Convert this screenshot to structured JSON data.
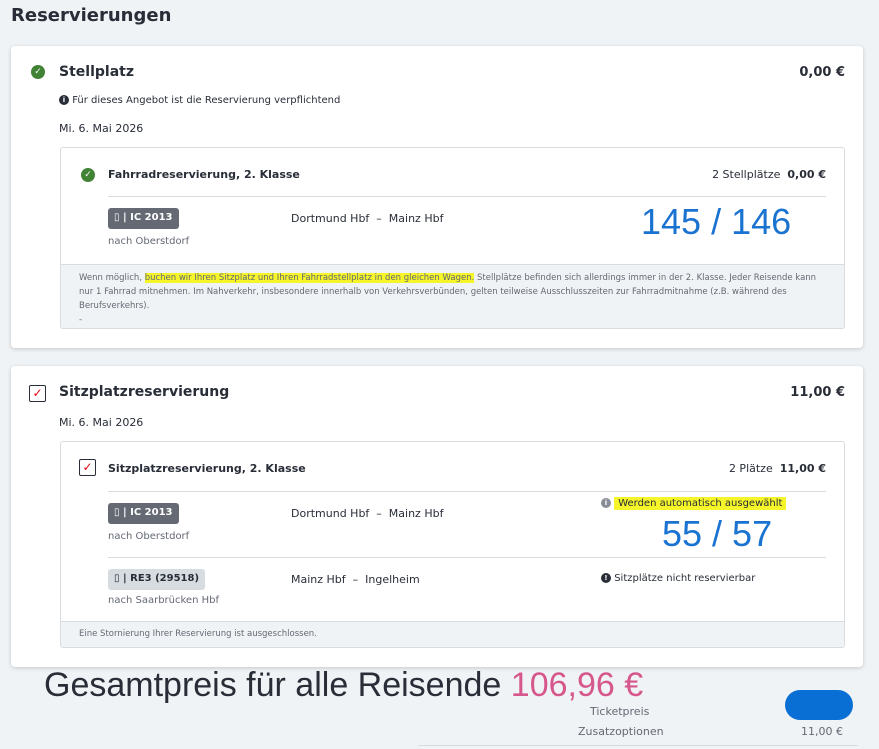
{
  "page_title": "Reservierungen",
  "stellplatz": {
    "title": "Stellplatz",
    "price": "0,00 €",
    "notice": "Für dieses Angebot ist die Reservierung verpflichtend",
    "date": "Mi. 6. Mai 2026",
    "item": {
      "title": "Fahrradreservierung, 2. Klasse",
      "count": "2 Stellplätze",
      "price": "0,00 €",
      "train": "IC 2013",
      "route": "Dortmund Hbf  –  Mainz Hbf",
      "direction": "nach Oberstdorf",
      "footer_pre": "Wenn möglich, ",
      "footer_hl": "buchen wir Ihren Sitzplatz und Ihren Fahrradstellplatz in den gleichen Wagen.",
      "footer_post": " Stellplätze befinden sich allerdings immer in der 2. Klasse. Jeder Reisende kann nur 1 Fahrrad mitnehmen. Im Nahverkehr, insbesondere innerhalb von Verkehrsverbünden, gelten teilweise Ausschlusszeiten zur Fahrradmitnahme (z.B. während des Berufsverkehrs).",
      "footer_dash": "-"
    },
    "annotation": "145 / 146"
  },
  "sitzplatz": {
    "title": "Sitzplatzreservierung",
    "price": "11,00 €",
    "date": "Mi. 6. Mai 2026",
    "item": {
      "title": "Sitzplatzreservierung, 2. Klasse",
      "count": "2 Plätze",
      "price": "11,00 €",
      "legs": [
        {
          "train": "IC 2013",
          "route": "Dortmund Hbf  –  Mainz Hbf",
          "direction": "nach Oberstdorf",
          "status": "Werden automatisch ausgewählt"
        },
        {
          "train": "RE3 (29518)",
          "route": "Mainz Hbf  –  Ingelheim",
          "direction": "nach Saarbrücken Hbf",
          "status": "Sitzplätze nicht reservierbar"
        }
      ],
      "footer": "Eine Stornierung Ihrer Reservierung ist ausgeschlossen."
    },
    "annotation": "55 / 57"
  },
  "total": {
    "label": "Gesamtpreis für alle Reisende ",
    "price": "106,96 €",
    "rows": [
      {
        "label": "Ticketpreis",
        "value": ""
      },
      {
        "label": "Zusatzoptionen",
        "value": "11,00 €"
      }
    ]
  },
  "colors": {
    "accent": "#1a73d0",
    "price_pink": "#d6578c",
    "check_green": "#408335",
    "highlight": "#f5f52a"
  }
}
